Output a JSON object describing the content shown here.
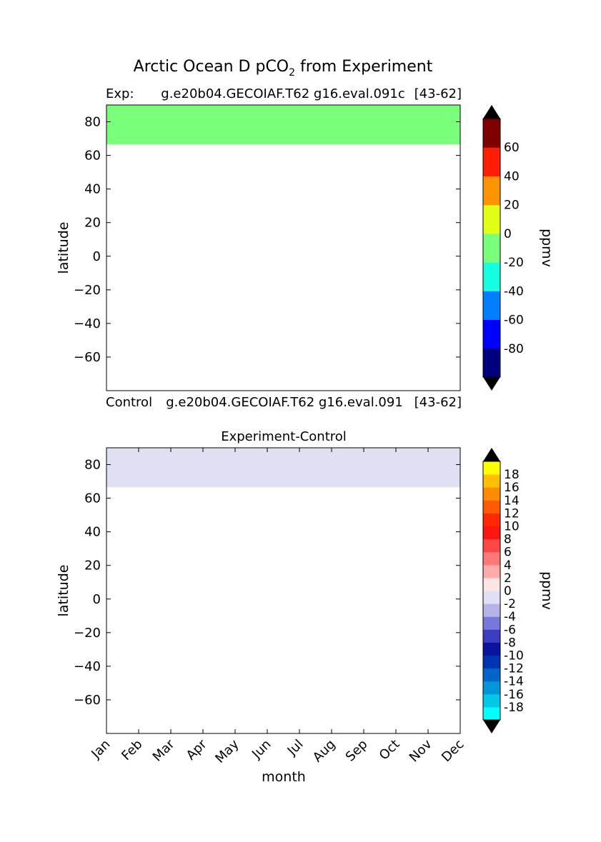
{
  "figure": {
    "title_main": "Arctic Ocean D pCO",
    "title_sub": "2",
    "title_rest": " from Experiment"
  },
  "chart_data": [
    {
      "type": "heatmap",
      "left_label": "Exp:",
      "center_label": "g.e20b04.GECOIAF.T62 g16.eval.091c",
      "right_label": "[43-62]",
      "ylabel": "latitude",
      "ylim": [
        -80,
        90
      ],
      "yticks": [
        80,
        60,
        40,
        20,
        0,
        -20,
        -40,
        -60
      ],
      "ytick_labels": [
        "80",
        "60",
        "40",
        "20",
        "0",
        "−20",
        "−40",
        "−60"
      ],
      "xlim": [
        0,
        11
      ],
      "filled_band": {
        "lat_min": 66.5,
        "lat_max": 90,
        "value_range": [
          -20,
          0
        ],
        "color": "#7aff7a"
      },
      "colorbar": {
        "label": "ppmv",
        "levels": [
          -100,
          -80,
          -60,
          -40,
          -20,
          0,
          20,
          40,
          60,
          80
        ],
        "tick_values": [
          -80,
          -60,
          -40,
          -20,
          0,
          20,
          40,
          60
        ],
        "tick_labels": [
          "-80",
          "-60",
          "-40",
          "-20",
          "0",
          "20",
          "40",
          "60"
        ],
        "colors": [
          "#00007f",
          "#0000ff",
          "#0080ff",
          "#15ffe1",
          "#7aff7a",
          "#e1ff15",
          "#ff9400",
          "#ff1e00",
          "#7f0000"
        ],
        "under_color": "#000000",
        "over_color": "#000000"
      }
    },
    {
      "type": "heatmap",
      "left_label": "Control",
      "center_label": "g.e20b04.GECOIAF.T62 g16.eval.091",
      "right_label": "[43-62]",
      "title": "Experiment-Control",
      "ylabel": "latitude",
      "xlabel": "month",
      "ylim": [
        -80,
        90
      ],
      "yticks": [
        80,
        60,
        40,
        20,
        0,
        -20,
        -40,
        -60
      ],
      "ytick_labels": [
        "80",
        "60",
        "40",
        "20",
        "0",
        "−20",
        "−40",
        "−60"
      ],
      "xlim": [
        0,
        11
      ],
      "categories": [
        "Jan",
        "Feb",
        "Mar",
        "Apr",
        "May",
        "Jun",
        "Jul",
        "Aug",
        "Sep",
        "Oct",
        "Nov",
        "Dec"
      ],
      "filled_band": {
        "lat_min": 66.5,
        "lat_max": 90,
        "value_range": [
          -2,
          0
        ],
        "color": "#e0e0f5"
      },
      "colorbar": {
        "label": "ppmv",
        "levels": [
          -20,
          -18,
          -16,
          -14,
          -12,
          -10,
          -8,
          -6,
          -4,
          -2,
          0,
          2,
          4,
          6,
          8,
          10,
          12,
          14,
          16,
          18,
          20
        ],
        "tick_values": [
          -18,
          -16,
          -14,
          -12,
          -10,
          -8,
          -6,
          -4,
          -2,
          0,
          2,
          4,
          6,
          8,
          10,
          12,
          14,
          16,
          18
        ],
        "tick_labels": [
          "-18",
          "-16",
          "-14",
          "-12",
          "-10",
          "-8",
          "-6",
          "-4",
          "-2",
          "0",
          "2",
          "4",
          "6",
          "8",
          "10",
          "12",
          "14",
          "16",
          "18"
        ],
        "colors": [
          "#00ffff",
          "#00c8e8",
          "#0096d8",
          "#0064c8",
          "#0032b4",
          "#0a14a0",
          "#3c3cc0",
          "#7878dc",
          "#b4b4e8",
          "#e0e0f5",
          "#ffe4e4",
          "#ffaaaa",
          "#ff7878",
          "#ff4646",
          "#ff1414",
          "#ff2800",
          "#ff5a00",
          "#ff8c00",
          "#ffbe00",
          "#ffff00"
        ],
        "under_color": "#000000",
        "over_color": "#000000"
      }
    }
  ]
}
